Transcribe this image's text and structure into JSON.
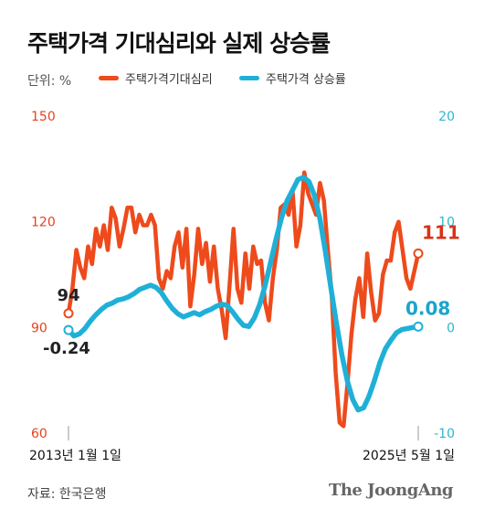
{
  "header": {
    "title": "주택가격 기대심리와 실제 상승률",
    "unit": "단위: %"
  },
  "footer": {
    "source": "자료: 한국은행",
    "brand": "The JoongAng"
  },
  "colors": {
    "expectation": "#ee4a1c",
    "actual": "#1fb0d8",
    "left_axis": "#e8421a",
    "right_axis": "#2cb6cf",
    "text": "#111111",
    "grid": "#999999"
  },
  "chart_data": {
    "type": "line",
    "x_range": [
      "2013년 1월 1일",
      "2025년 5월 1일"
    ],
    "x_labels": [
      "2013년 1월 1일",
      "2025년 5월 1일"
    ],
    "left_axis": {
      "ylim": [
        60,
        150
      ],
      "ticks": [
        "150",
        "120",
        "90",
        "60"
      ]
    },
    "right_axis": {
      "ylim": [
        -10,
        20
      ],
      "ticks": [
        "20",
        "10",
        "0",
        "-10"
      ]
    },
    "series": [
      {
        "name": "주택가격기대심리",
        "axis": "left",
        "start_label": "94",
        "end_label": "111",
        "values": [
          94,
          101,
          112,
          107,
          104,
          113,
          108,
          118,
          113,
          119,
          112,
          124,
          121,
          113,
          118,
          124,
          124,
          117,
          122,
          119,
          119,
          122,
          119,
          104,
          101,
          106,
          104,
          113,
          117,
          107,
          118,
          96,
          105,
          118,
          108,
          114,
          103,
          113,
          101,
          95,
          87,
          102,
          118,
          101,
          97,
          111,
          101,
          113,
          108,
          109,
          97,
          92,
          104,
          112,
          124,
          125,
          122,
          129,
          113,
          119,
          134,
          128,
          125,
          122,
          131,
          126,
          112,
          99,
          77,
          63,
          62,
          74,
          88,
          98,
          104,
          93,
          111,
          100,
          92,
          94,
          105,
          109,
          109,
          117,
          120,
          112,
          104,
          101,
          106,
          111
        ]
      },
      {
        "name": "주택가격 상승률",
        "axis": "right",
        "start_label": "-0.24",
        "end_label": "0.08",
        "values": [
          -0.24,
          -0.8,
          -0.6,
          -0.1,
          0.6,
          1.2,
          1.7,
          2.1,
          2.3,
          2.6,
          2.7,
          2.9,
          3.2,
          3.6,
          3.8,
          4.0,
          3.8,
          3.3,
          2.5,
          1.8,
          1.3,
          1.0,
          1.2,
          1.4,
          1.2,
          1.5,
          1.7,
          2.0,
          2.2,
          2.1,
          1.5,
          0.8,
          0.2,
          0.1,
          0.9,
          2.2,
          4.0,
          6.2,
          8.4,
          10.4,
          12.0,
          13.0,
          14.0,
          14.2,
          13.8,
          12.5,
          10.3,
          7.2,
          3.8,
          0.5,
          -2.5,
          -5.0,
          -6.8,
          -7.8,
          -7.6,
          -6.5,
          -5.0,
          -3.3,
          -2.0,
          -1.2,
          -0.5,
          -0.2,
          -0.1,
          0.0,
          0.08
        ]
      }
    ]
  }
}
